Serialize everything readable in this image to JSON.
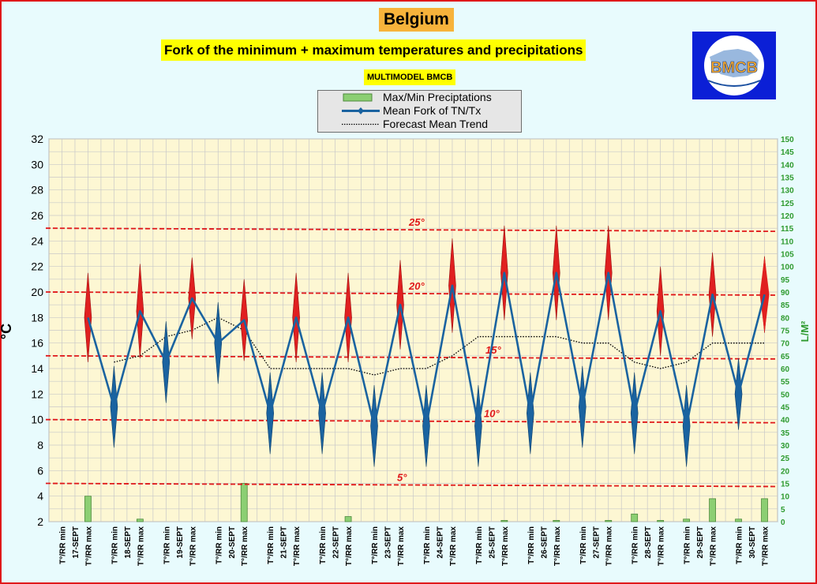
{
  "header": {
    "country": "Belgium",
    "title": "Fork of the minimum + maximum temperatures and precipitations",
    "subtitle": "MULTIMODEL BMCB"
  },
  "logo": {
    "text": "BMCB"
  },
  "legend": {
    "items": [
      {
        "label": "Max/Min Preciptations",
        "icon": "green-bar"
      },
      {
        "label": "Mean Fork of TN/Tx",
        "icon": "blue-diamond-line"
      },
      {
        "label": "Forecast Mean Trend",
        "icon": "dotted-line"
      }
    ]
  },
  "colors": {
    "background": "#e8fbfd",
    "plot_background": "#fdf7d3",
    "border": "#e0181a",
    "temperature_line": "#1a63a0",
    "max_diamond": "#e02020",
    "min_diamond": "#1a63a0",
    "precipitation": "#8ccf73",
    "trend": "#000000",
    "threshold": "#e0181a",
    "right_axis": "#2e9a2e"
  },
  "chart_data": {
    "type": "line",
    "ylabel": "°C",
    "ylabel_right": "L/M²",
    "ylim": [
      2,
      32
    ],
    "y_ticks": [
      2,
      4,
      6,
      8,
      10,
      12,
      14,
      16,
      18,
      20,
      22,
      24,
      26,
      28,
      30,
      32
    ],
    "ylim_right": [
      0,
      150
    ],
    "y_right_ticks": [
      0,
      5,
      10,
      15,
      20,
      25,
      30,
      35,
      40,
      45,
      50,
      55,
      60,
      65,
      70,
      75,
      80,
      85,
      90,
      95,
      100,
      105,
      110,
      115,
      120,
      125,
      130,
      135,
      140,
      145,
      150
    ],
    "grid": true,
    "categories": [
      "T°/RR min",
      "T°/RR max",
      "T°/RR min",
      "T°/RR max",
      "T°/RR min",
      "T°/RR max",
      "T°/RR min",
      "T°/RR max",
      "T°/RR min",
      "T°/RR max",
      "T°/RR min",
      "T°/RR max",
      "T°/RR min",
      "T°/RR max",
      "T°/RR min",
      "T°/RR max",
      "T°/RR min",
      "T°/RR max",
      "T°/RR min",
      "T°/RR max",
      "T°/RR min",
      "T°/RR max",
      "T°/RR min",
      "T°/RR max",
      "T°/RR min",
      "T°/RR max",
      "T°/RR min",
      "T°/RR max"
    ],
    "dates": [
      "17-SEPT",
      "18-SEPT",
      "19-SEPT",
      "20-SEPT",
      "21-SEPT",
      "22-SEPT",
      "23-SEPT",
      "24-SEPT",
      "25-SEPT",
      "26-SEPT",
      "27-SEPT",
      "28-SEPT",
      "29-SEPT",
      "30-SEPT"
    ],
    "series": [
      {
        "name": "Mean Fork of TN/Tx",
        "values": [
          null,
          18,
          11,
          18.5,
          14.5,
          19.5,
          16,
          17.8,
          10.5,
          18,
          10.5,
          18,
          9.5,
          19,
          9.5,
          20.5,
          9.5,
          21.5,
          10.5,
          21.5,
          11,
          21.5,
          10.5,
          18.5,
          9.5,
          19.8,
          12,
          19.8
        ]
      },
      {
        "name": "Max/Min Preciptations",
        "values": [
          0,
          10,
          0,
          1,
          0,
          0,
          0,
          15,
          0,
          0,
          0,
          2,
          0,
          0,
          0,
          0,
          0,
          0.5,
          0,
          0.5,
          0,
          0.5,
          3,
          0.5,
          1,
          9,
          1,
          9
        ]
      },
      {
        "name": "Forecast Mean Trend",
        "values": [
          null,
          null,
          14.5,
          15,
          16.5,
          17,
          18,
          17,
          14,
          14,
          14,
          14,
          13.5,
          14,
          14,
          15,
          16.5,
          16.5,
          16.5,
          16.5,
          16,
          16,
          14.5,
          14,
          14.5,
          16,
          16,
          16
        ]
      }
    ],
    "fork_spread": [
      null,
      3.5,
      3.2,
      3.7,
      3.2,
      3.2,
      3.2,
      3.2,
      3.2,
      3.5,
      3.2,
      3.5,
      3.2,
      3.5,
      3.2,
      3.7,
      3.2,
      3.7,
      3.2,
      3.7,
      3.2,
      3.7,
      3.2,
      3.5,
      3.2,
      3.3,
      2.8,
      3.0
    ],
    "threshold_lines": [
      {
        "label": "25°",
        "value": 25
      },
      {
        "label": "20°",
        "value": 20
      },
      {
        "label": "15°",
        "value": 15
      },
      {
        "label": "10°",
        "value": 10
      },
      {
        "label": "5°",
        "value": 5
      }
    ]
  }
}
